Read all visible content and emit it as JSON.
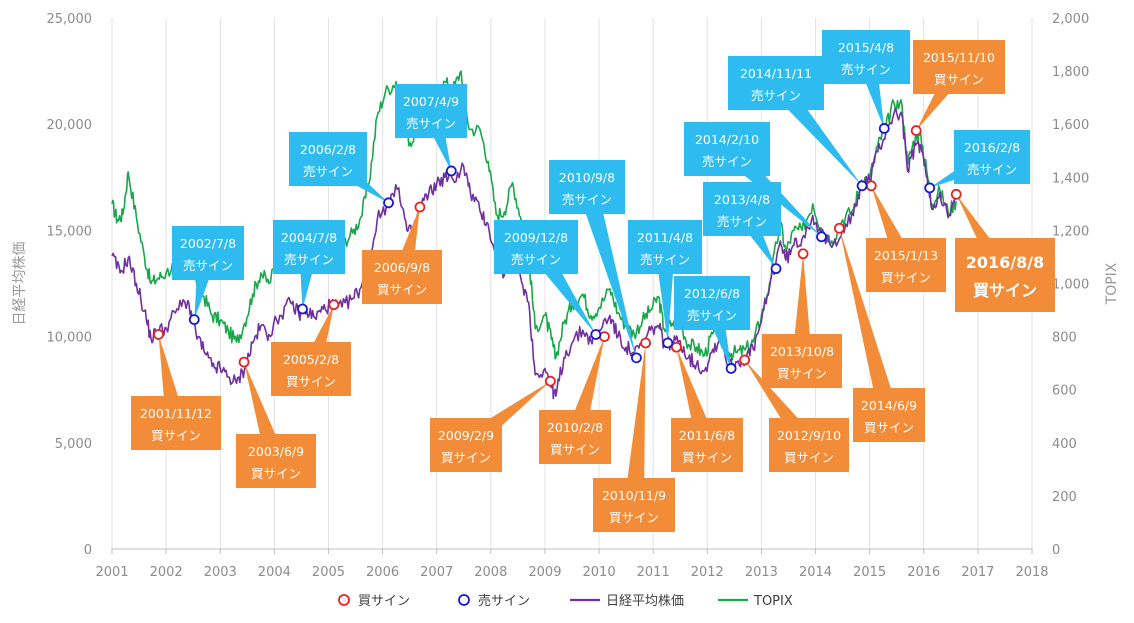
{
  "chart_data": {
    "type": "line",
    "xlabel": "",
    "ylabel_left": "日経平均株価",
    "ylabel_right": "TOPIX",
    "xlim": [
      2001,
      2018
    ],
    "ylim_left": [
      0,
      25000
    ],
    "ylim_right": [
      0,
      2000
    ],
    "x_ticks": [
      2001,
      2002,
      2003,
      2004,
      2005,
      2006,
      2007,
      2008,
      2009,
      2010,
      2011,
      2012,
      2013,
      2014,
      2015,
      2016,
      2017,
      2018
    ],
    "x_tick_labels": [
      "2001",
      "2002",
      "2003",
      "2004",
      "2005",
      "2006",
      "2007",
      "2008",
      "2009",
      "2010",
      "2011",
      "2012",
      "2013",
      "2014",
      "2015",
      "2016",
      "2017",
      "2018"
    ],
    "y_left_ticks": [
      0,
      5000,
      10000,
      15000,
      20000,
      25000
    ],
    "y_left_tick_labels": [
      "0",
      "5,000",
      "10,000",
      "15,000",
      "20,000",
      "25,000"
    ],
    "y_right_ticks": [
      0,
      200,
      400,
      600,
      800,
      1000,
      1200,
      1400,
      1600,
      1800,
      2000
    ],
    "y_right_tick_labels": [
      "0",
      "200",
      "400",
      "600",
      "800",
      "1,000",
      "1,200",
      "1,400",
      "1,600",
      "1,800",
      "2,000"
    ],
    "grid": "vertical",
    "legend_position": "bottom",
    "legend": [
      {
        "label": "買サイン",
        "kind": "circle",
        "color": "#e62222"
      },
      {
        "label": "売サイン",
        "kind": "circle",
        "color": "#1a1acc"
      },
      {
        "label": "日経平均株価",
        "kind": "line",
        "color": "#7030a0"
      },
      {
        "label": "TOPIX",
        "kind": "line",
        "color": "#18a84a"
      }
    ],
    "series": [
      {
        "name": "日経平均株価",
        "axis": "left",
        "color": "#7030a0",
        "points": [
          [
            2001.0,
            13800
          ],
          [
            2001.15,
            13000
          ],
          [
            2001.3,
            13700
          ],
          [
            2001.45,
            12500
          ],
          [
            2001.6,
            11200
          ],
          [
            2001.72,
            9900
          ],
          [
            2001.85,
            10300
          ],
          [
            2002.0,
            10400
          ],
          [
            2002.2,
            11300
          ],
          [
            2002.4,
            11700
          ],
          [
            2002.55,
            10200
          ],
          [
            2002.7,
            9300
          ],
          [
            2002.85,
            8600
          ],
          [
            2003.0,
            8500
          ],
          [
            2003.15,
            8100
          ],
          [
            2003.3,
            7800
          ],
          [
            2003.45,
            8500
          ],
          [
            2003.6,
            9700
          ],
          [
            2003.75,
            10500
          ],
          [
            2003.9,
            10100
          ],
          [
            2004.1,
            11000
          ],
          [
            2004.3,
            11600
          ],
          [
            2004.45,
            11100
          ],
          [
            2004.6,
            11200
          ],
          [
            2004.75,
            10900
          ],
          [
            2004.9,
            11300
          ],
          [
            2005.05,
            11500
          ],
          [
            2005.25,
            11400
          ],
          [
            2005.45,
            11800
          ],
          [
            2005.6,
            12300
          ],
          [
            2005.75,
            13500
          ],
          [
            2005.9,
            15500
          ],
          [
            2006.1,
            16300
          ],
          [
            2006.3,
            17000
          ],
          [
            2006.45,
            15000
          ],
          [
            2006.55,
            14900
          ],
          [
            2006.7,
            16200
          ],
          [
            2006.85,
            16700
          ],
          [
            2007.0,
            17200
          ],
          [
            2007.15,
            17500
          ],
          [
            2007.3,
            17400
          ],
          [
            2007.5,
            18000
          ],
          [
            2007.62,
            16800
          ],
          [
            2007.8,
            15900
          ],
          [
            2007.95,
            15300
          ],
          [
            2008.1,
            13500
          ],
          [
            2008.25,
            12900
          ],
          [
            2008.4,
            14000
          ],
          [
            2008.55,
            12800
          ],
          [
            2008.7,
            11600
          ],
          [
            2008.82,
            8200
          ],
          [
            2009.0,
            8500
          ],
          [
            2009.12,
            7600
          ],
          [
            2009.2,
            7200
          ],
          [
            2009.35,
            9000
          ],
          [
            2009.5,
            9700
          ],
          [
            2009.7,
            10300
          ],
          [
            2009.85,
            9800
          ],
          [
            2010.0,
            10300
          ],
          [
            2010.2,
            11000
          ],
          [
            2010.35,
            10000
          ],
          [
            2010.5,
            9500
          ],
          [
            2010.65,
            9200
          ],
          [
            2010.8,
            9600
          ],
          [
            2010.95,
            10300
          ],
          [
            2011.1,
            10500
          ],
          [
            2011.2,
            9700
          ],
          [
            2011.35,
            9700
          ],
          [
            2011.5,
            9800
          ],
          [
            2011.65,
            9000
          ],
          [
            2011.8,
            8700
          ],
          [
            2011.95,
            8400
          ],
          [
            2012.1,
            9400
          ],
          [
            2012.25,
            9900
          ],
          [
            2012.4,
            8600
          ],
          [
            2012.55,
            8800
          ],
          [
            2012.7,
            9000
          ],
          [
            2012.85,
            9400
          ],
          [
            2013.0,
            10700
          ],
          [
            2013.15,
            12300
          ],
          [
            2013.35,
            14500
          ],
          [
            2013.45,
            13600
          ],
          [
            2013.6,
            14300
          ],
          [
            2013.75,
            14600
          ],
          [
            2013.95,
            15700
          ],
          [
            2014.1,
            14800
          ],
          [
            2014.3,
            14200
          ],
          [
            2014.5,
            15100
          ],
          [
            2014.7,
            15700
          ],
          [
            2014.85,
            17200
          ],
          [
            2015.0,
            17400
          ],
          [
            2015.15,
            18700
          ],
          [
            2015.3,
            19600
          ],
          [
            2015.45,
            20500
          ],
          [
            2015.6,
            20400
          ],
          [
            2015.7,
            17800
          ],
          [
            2015.85,
            19000
          ],
          [
            2015.95,
            19000
          ],
          [
            2016.05,
            17500
          ],
          [
            2016.15,
            16000
          ],
          [
            2016.3,
            16800
          ],
          [
            2016.45,
            15600
          ],
          [
            2016.6,
            16500
          ]
        ]
      },
      {
        "name": "TOPIX",
        "axis": "right",
        "color": "#18a84a",
        "points": [
          [
            2001.0,
            1300
          ],
          [
            2001.1,
            1240
          ],
          [
            2001.2,
            1260
          ],
          [
            2001.3,
            1420
          ],
          [
            2001.45,
            1250
          ],
          [
            2001.6,
            1100
          ],
          [
            2001.72,
            1000
          ],
          [
            2001.85,
            1020
          ],
          [
            2002.0,
            1040
          ],
          [
            2002.2,
            1080
          ],
          [
            2002.4,
            1130
          ],
          [
            2002.55,
            1020
          ],
          [
            2002.7,
            950
          ],
          [
            2002.85,
            880
          ],
          [
            2003.0,
            860
          ],
          [
            2003.15,
            820
          ],
          [
            2003.3,
            780
          ],
          [
            2003.45,
            850
          ],
          [
            2003.6,
            960
          ],
          [
            2003.75,
            1040
          ],
          [
            2003.9,
            1000
          ],
          [
            2004.1,
            1110
          ],
          [
            2004.3,
            1190
          ],
          [
            2004.45,
            1130
          ],
          [
            2004.6,
            1140
          ],
          [
            2004.75,
            1120
          ],
          [
            2004.9,
            1150
          ],
          [
            2005.05,
            1160
          ],
          [
            2005.25,
            1150
          ],
          [
            2005.45,
            1190
          ],
          [
            2005.6,
            1250
          ],
          [
            2005.75,
            1380
          ],
          [
            2005.9,
            1630
          ],
          [
            2006.05,
            1720
          ],
          [
            2006.25,
            1760
          ],
          [
            2006.4,
            1560
          ],
          [
            2006.55,
            1530
          ],
          [
            2006.7,
            1630
          ],
          [
            2006.85,
            1650
          ],
          [
            2007.0,
            1700
          ],
          [
            2007.15,
            1760
          ],
          [
            2007.3,
            1730
          ],
          [
            2007.45,
            1800
          ],
          [
            2007.6,
            1580
          ],
          [
            2007.8,
            1580
          ],
          [
            2007.95,
            1460
          ],
          [
            2008.1,
            1260
          ],
          [
            2008.25,
            1270
          ],
          [
            2008.4,
            1380
          ],
          [
            2008.55,
            1250
          ],
          [
            2008.7,
            1100
          ],
          [
            2008.82,
            830
          ],
          [
            2009.0,
            880
          ],
          [
            2009.12,
            790
          ],
          [
            2009.2,
            720
          ],
          [
            2009.35,
            850
          ],
          [
            2009.5,
            920
          ],
          [
            2009.7,
            960
          ],
          [
            2009.85,
            880
          ],
          [
            2010.0,
            910
          ],
          [
            2010.2,
            980
          ],
          [
            2010.35,
            890
          ],
          [
            2010.5,
            840
          ],
          [
            2010.65,
            810
          ],
          [
            2010.8,
            860
          ],
          [
            2010.95,
            900
          ],
          [
            2011.1,
            950
          ],
          [
            2011.2,
            830
          ],
          [
            2011.35,
            850
          ],
          [
            2011.5,
            850
          ],
          [
            2011.65,
            770
          ],
          [
            2011.8,
            760
          ],
          [
            2011.95,
            730
          ],
          [
            2012.1,
            810
          ],
          [
            2012.25,
            860
          ],
          [
            2012.4,
            740
          ],
          [
            2012.55,
            740
          ],
          [
            2012.7,
            750
          ],
          [
            2012.85,
            780
          ],
          [
            2013.0,
            880
          ],
          [
            2013.15,
            1000
          ],
          [
            2013.35,
            1230
          ],
          [
            2013.45,
            1120
          ],
          [
            2013.6,
            1200
          ],
          [
            2013.75,
            1200
          ],
          [
            2013.95,
            1300
          ],
          [
            2014.1,
            1210
          ],
          [
            2014.3,
            1160
          ],
          [
            2014.5,
            1240
          ],
          [
            2014.7,
            1280
          ],
          [
            2014.85,
            1390
          ],
          [
            2015.0,
            1400
          ],
          [
            2015.15,
            1520
          ],
          [
            2015.3,
            1590
          ],
          [
            2015.45,
            1680
          ],
          [
            2015.6,
            1670
          ],
          [
            2015.7,
            1450
          ],
          [
            2015.85,
            1560
          ],
          [
            2015.95,
            1550
          ],
          [
            2016.05,
            1430
          ],
          [
            2016.15,
            1300
          ],
          [
            2016.3,
            1350
          ],
          [
            2016.45,
            1270
          ],
          [
            2016.6,
            1310
          ]
        ]
      }
    ],
    "signals": [
      {
        "type": "buy",
        "x": 2001.86,
        "y": 10100,
        "date": "2001/11/12",
        "label": "買サイン"
      },
      {
        "type": "buy",
        "x": 2003.44,
        "y": 8800,
        "date": "2003/6/9",
        "label": "買サイン"
      },
      {
        "type": "buy",
        "x": 2005.1,
        "y": 11500,
        "date": "2005/2/8",
        "label": "買サイン"
      },
      {
        "type": "buy",
        "x": 2006.69,
        "y": 16100,
        "date": "2006/9/8",
        "label": "買サイン"
      },
      {
        "type": "buy",
        "x": 2009.1,
        "y": 7900,
        "date": "2009/2/9",
        "label": "買サイン"
      },
      {
        "type": "buy",
        "x": 2010.1,
        "y": 10000,
        "date": "2010/2/8",
        "label": "買サイン"
      },
      {
        "type": "buy",
        "x": 2010.86,
        "y": 9700,
        "date": "2010/11/9",
        "label": "買サイン"
      },
      {
        "type": "buy",
        "x": 2011.43,
        "y": 9500,
        "date": "2011/6/8",
        "label": "買サイン"
      },
      {
        "type": "buy",
        "x": 2012.69,
        "y": 8900,
        "date": "2012/9/10",
        "label": "買サイン"
      },
      {
        "type": "buy",
        "x": 2013.77,
        "y": 13900,
        "date": "2013/10/8",
        "label": "買サイン"
      },
      {
        "type": "buy",
        "x": 2014.44,
        "y": 15100,
        "date": "2014/6/9",
        "label": "買サイン"
      },
      {
        "type": "buy",
        "x": 2015.03,
        "y": 17100,
        "date": "2015/1/13",
        "label": "買サイン"
      },
      {
        "type": "buy",
        "x": 2015.86,
        "y": 19700,
        "date": "2015/11/10",
        "label": "買サイン"
      },
      {
        "type": "buy",
        "x": 2016.6,
        "y": 16700,
        "date": "2016/8/8",
        "label": "買サイン"
      },
      {
        "type": "sell",
        "x": 2002.52,
        "y": 10800,
        "date": "2002/7/8",
        "label": "売サイン"
      },
      {
        "type": "sell",
        "x": 2004.52,
        "y": 11300,
        "date": "2004/7/8",
        "label": "売サイン"
      },
      {
        "type": "sell",
        "x": 2006.11,
        "y": 16300,
        "date": "2006/2/8",
        "label": "売サイン"
      },
      {
        "type": "sell",
        "x": 2007.27,
        "y": 17800,
        "date": "2007/4/9",
        "label": "売サイン"
      },
      {
        "type": "sell",
        "x": 2009.94,
        "y": 10100,
        "date": "2009/12/8",
        "label": "売サイン"
      },
      {
        "type": "sell",
        "x": 2010.69,
        "y": 9000,
        "date": "2010/9/8",
        "label": "売サイン"
      },
      {
        "type": "sell",
        "x": 2011.27,
        "y": 9700,
        "date": "2011/4/8",
        "label": "売サイン"
      },
      {
        "type": "sell",
        "x": 2012.44,
        "y": 8500,
        "date": "2012/6/8",
        "label": "売サイン"
      },
      {
        "type": "sell",
        "x": 2013.27,
        "y": 13200,
        "date": "2013/4/8",
        "label": "売サイン"
      },
      {
        "type": "sell",
        "x": 2014.11,
        "y": 14700,
        "date": "2014/2/10",
        "label": "売サイン"
      },
      {
        "type": "sell",
        "x": 2014.86,
        "y": 17100,
        "date": "2014/11/11",
        "label": "売サイン"
      },
      {
        "type": "sell",
        "x": 2015.27,
        "y": 19800,
        "date": "2015/4/8",
        "label": "売サイン"
      },
      {
        "type": "sell",
        "x": 2016.11,
        "y": 17000,
        "date": "2016/2/8",
        "label": "売サイン"
      }
    ]
  }
}
